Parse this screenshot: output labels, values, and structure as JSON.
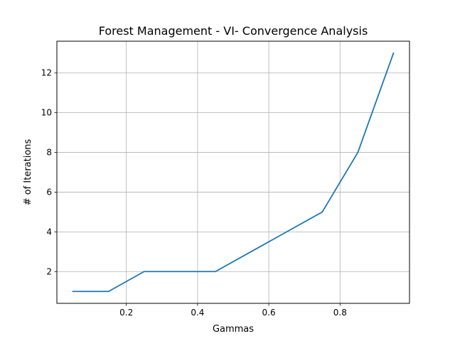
{
  "chart_data": {
    "type": "line",
    "title": "Forest Management - VI- Convergence Analysis",
    "xlabel": "Gammas",
    "ylabel": "# of Iterations",
    "xlim": [
      0.005,
      0.995
    ],
    "ylim": [
      0.4,
      13.6
    ],
    "xticks": [
      0.2,
      0.4,
      0.6,
      0.8
    ],
    "xtick_labels": [
      "0.2",
      "0.4",
      "0.6",
      "0.8"
    ],
    "yticks": [
      2,
      4,
      6,
      8,
      10,
      12
    ],
    "ytick_labels": [
      "2",
      "4",
      "6",
      "8",
      "10",
      "12"
    ],
    "grid": true,
    "series": [
      {
        "color": "#1f77b4",
        "x": [
          0.05,
          0.15,
          0.25,
          0.35,
          0.45,
          0.55,
          0.65,
          0.75,
          0.85,
          0.95
        ],
        "y": [
          1,
          1,
          2,
          2,
          2,
          3,
          4,
          5,
          8,
          13
        ]
      }
    ]
  }
}
